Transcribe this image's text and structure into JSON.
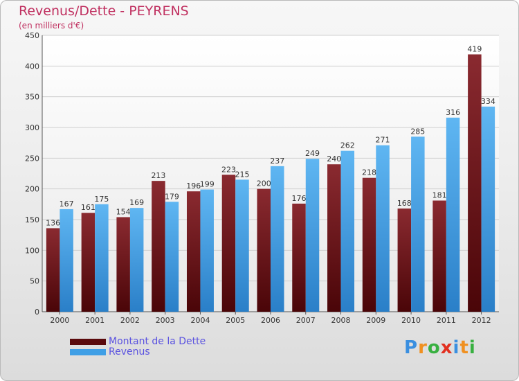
{
  "header": {
    "title": "Revenus/Dette - PEYRENS",
    "subtitle": "(en milliers d'€)"
  },
  "logo": {
    "text": "Proxiti",
    "letters": [
      "P",
      "r",
      "o",
      "x",
      "i",
      "t",
      "i"
    ],
    "colors": [
      "#3a8fe0",
      "#f09020",
      "#38b040",
      "#e23020",
      "#3a8fe0",
      "#f09020",
      "#38b040"
    ]
  },
  "colors": {
    "dette": "#7a1f24",
    "revenus": "#3f9fe6",
    "title": "#c03060",
    "legend_text": "#5a52e0"
  },
  "legend": {
    "items": [
      {
        "label": "Montant de la Dette",
        "color": "#5a0a0c"
      },
      {
        "label": "Revenus",
        "color": "#3f9fe6"
      }
    ]
  },
  "chart_data": {
    "type": "bar",
    "title": "Revenus/Dette - PEYRENS",
    "subtitle": "(en milliers d'€)",
    "xlabel": "",
    "ylabel": "",
    "categories": [
      "2000",
      "2001",
      "2002",
      "2003",
      "2004",
      "2005",
      "2006",
      "2007",
      "2008",
      "2009",
      "2010",
      "2011",
      "2012"
    ],
    "series": [
      {
        "name": "Montant de la Dette",
        "values": [
          136,
          161,
          154,
          213,
          196,
          223,
          200,
          176,
          240,
          218,
          168,
          181,
          419
        ]
      },
      {
        "name": "Revenus",
        "values": [
          167,
          175,
          169,
          179,
          199,
          215,
          237,
          249,
          262,
          271,
          285,
          316,
          334
        ]
      }
    ],
    "ylim": [
      0,
      450
    ],
    "yticks": [
      0,
      50,
      100,
      150,
      200,
      250,
      300,
      350,
      400,
      450
    ],
    "grid": true,
    "legend_position": "bottom-left"
  }
}
